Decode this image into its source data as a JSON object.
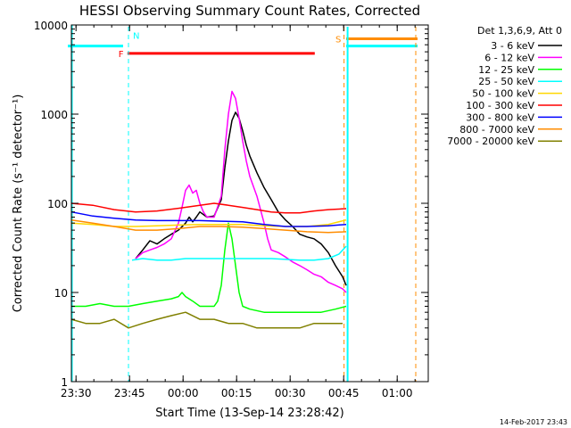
{
  "chart_data": {
    "type": "line",
    "title": "HESSI Observing Summary Count Rates, Corrected",
    "xlabel": "Start Time (13-Sep-14 23:28:42)",
    "ylabel": "Corrected Count Rate (s⁻¹ detector⁻¹)",
    "yscale": "log",
    "ylim": [
      1,
      10000
    ],
    "xlim_minutes": [
      0,
      100
    ],
    "grid": false,
    "legend_position": "right",
    "legend_title": "Det 1,3,6,9, Att 0",
    "x_ticks": [
      {
        "minute": 1.3,
        "label": "23:30"
      },
      {
        "minute": 16.3,
        "label": "23:45"
      },
      {
        "minute": 31.3,
        "label": "00:00"
      },
      {
        "minute": 46.3,
        "label": "00:15"
      },
      {
        "minute": 61.3,
        "label": "00:30"
      },
      {
        "minute": 76.3,
        "label": "00:45"
      },
      {
        "minute": 91.3,
        "label": "01:00"
      }
    ],
    "y_ticks": [
      {
        "value": 1,
        "label": "1"
      },
      {
        "value": 10,
        "label": "10"
      },
      {
        "value": 100,
        "label": "100"
      },
      {
        "value": 1000,
        "label": "1000"
      },
      {
        "value": 10000,
        "label": "10000"
      }
    ],
    "series": [
      {
        "name": "3 - 6 keV",
        "color": "#000000",
        "points": [
          [
            18,
            24
          ],
          [
            20,
            30
          ],
          [
            22,
            38
          ],
          [
            24,
            35
          ],
          [
            26,
            40
          ],
          [
            28,
            45
          ],
          [
            30,
            50
          ],
          [
            32,
            60
          ],
          [
            33,
            70
          ],
          [
            34,
            62
          ],
          [
            35,
            70
          ],
          [
            36,
            80
          ],
          [
            38,
            70
          ],
          [
            40,
            72
          ],
          [
            42,
            110
          ],
          [
            43,
            250
          ],
          [
            44,
            500
          ],
          [
            45,
            850
          ],
          [
            46,
            1050
          ],
          [
            47,
            900
          ],
          [
            48,
            650
          ],
          [
            49,
            450
          ],
          [
            50,
            340
          ],
          [
            52,
            220
          ],
          [
            54,
            150
          ],
          [
            56,
            110
          ],
          [
            58,
            80
          ],
          [
            60,
            65
          ],
          [
            62,
            55
          ],
          [
            64,
            45
          ],
          [
            66,
            42
          ],
          [
            68,
            40
          ],
          [
            70,
            35
          ],
          [
            72,
            28
          ],
          [
            74,
            20
          ],
          [
            76,
            15
          ],
          [
            77,
            12
          ]
        ]
      },
      {
        "name": "6 - 12 keV",
        "color": "#ff00ff",
        "points": [
          [
            18,
            24
          ],
          [
            20,
            28
          ],
          [
            22,
            30
          ],
          [
            24,
            32
          ],
          [
            26,
            35
          ],
          [
            28,
            40
          ],
          [
            30,
            60
          ],
          [
            31,
            90
          ],
          [
            32,
            140
          ],
          [
            33,
            160
          ],
          [
            34,
            130
          ],
          [
            35,
            140
          ],
          [
            36,
            100
          ],
          [
            37,
            80
          ],
          [
            38,
            70
          ],
          [
            40,
            70
          ],
          [
            42,
            120
          ],
          [
            43,
            400
          ],
          [
            44,
            1000
          ],
          [
            45,
            1800
          ],
          [
            46,
            1500
          ],
          [
            47,
            900
          ],
          [
            48,
            500
          ],
          [
            49,
            300
          ],
          [
            50,
            200
          ],
          [
            52,
            120
          ],
          [
            54,
            60
          ],
          [
            55,
            40
          ],
          [
            56,
            30
          ],
          [
            58,
            28
          ],
          [
            60,
            25
          ],
          [
            62,
            22
          ],
          [
            64,
            20
          ],
          [
            66,
            18
          ],
          [
            68,
            16
          ],
          [
            70,
            15
          ],
          [
            72,
            13
          ],
          [
            74,
            12
          ],
          [
            76,
            11
          ],
          [
            77,
            10
          ]
        ]
      },
      {
        "name": "12 - 25 keV",
        "color": "#00ff00",
        "points": [
          [
            0,
            7
          ],
          [
            4,
            7
          ],
          [
            8,
            7.5
          ],
          [
            12,
            7
          ],
          [
            16,
            7
          ],
          [
            20,
            7.5
          ],
          [
            24,
            8
          ],
          [
            28,
            8.5
          ],
          [
            30,
            9
          ],
          [
            31,
            10
          ],
          [
            32,
            9
          ],
          [
            34,
            8
          ],
          [
            36,
            7
          ],
          [
            38,
            7
          ],
          [
            40,
            7
          ],
          [
            41,
            8
          ],
          [
            42,
            12
          ],
          [
            43,
            30
          ],
          [
            44,
            60
          ],
          [
            45,
            40
          ],
          [
            46,
            20
          ],
          [
            47,
            10
          ],
          [
            48,
            7
          ],
          [
            50,
            6.5
          ],
          [
            54,
            6
          ],
          [
            58,
            6
          ],
          [
            62,
            6
          ],
          [
            66,
            6
          ],
          [
            70,
            6
          ],
          [
            74,
            6.5
          ],
          [
            77,
            7
          ]
        ]
      },
      {
        "name": "25 - 50 keV",
        "color": "#00ffff",
        "points": [
          [
            17,
            23
          ],
          [
            20,
            24
          ],
          [
            24,
            23
          ],
          [
            28,
            23
          ],
          [
            32,
            24
          ],
          [
            36,
            24
          ],
          [
            40,
            24
          ],
          [
            44,
            24
          ],
          [
            48,
            24
          ],
          [
            52,
            24
          ],
          [
            56,
            24
          ],
          [
            60,
            23.5
          ],
          [
            64,
            23
          ],
          [
            68,
            23
          ],
          [
            72,
            24
          ],
          [
            75,
            27
          ],
          [
            77,
            33
          ]
        ]
      },
      {
        "name": "50 - 100 keV",
        "color": "#ffd700",
        "points": [
          [
            0,
            60
          ],
          [
            6,
            58
          ],
          [
            12,
            55
          ],
          [
            18,
            55
          ],
          [
            24,
            56
          ],
          [
            30,
            57
          ],
          [
            36,
            58
          ],
          [
            42,
            58
          ],
          [
            48,
            58
          ],
          [
            54,
            56
          ],
          [
            60,
            55
          ],
          [
            66,
            55
          ],
          [
            72,
            58
          ],
          [
            77,
            65
          ]
        ]
      },
      {
        "name": "100 - 300 keV",
        "color": "#ff0000",
        "points": [
          [
            0,
            100
          ],
          [
            6,
            95
          ],
          [
            12,
            85
          ],
          [
            18,
            80
          ],
          [
            24,
            82
          ],
          [
            30,
            88
          ],
          [
            36,
            95
          ],
          [
            40,
            100
          ],
          [
            44,
            95
          ],
          [
            48,
            90
          ],
          [
            52,
            85
          ],
          [
            56,
            80
          ],
          [
            60,
            78
          ],
          [
            64,
            78
          ],
          [
            68,
            82
          ],
          [
            72,
            85
          ],
          [
            77,
            87
          ]
        ]
      },
      {
        "name": "300 - 800 keV",
        "color": "#0000ff",
        "points": [
          [
            0,
            80
          ],
          [
            6,
            72
          ],
          [
            12,
            68
          ],
          [
            18,
            65
          ],
          [
            24,
            64
          ],
          [
            30,
            64
          ],
          [
            36,
            64
          ],
          [
            42,
            63
          ],
          [
            48,
            62
          ],
          [
            54,
            58
          ],
          [
            60,
            55
          ],
          [
            66,
            55
          ],
          [
            72,
            56
          ],
          [
            77,
            58
          ]
        ]
      },
      {
        "name": "800 - 7000 keV",
        "color": "#ff8c00",
        "points": [
          [
            0,
            65
          ],
          [
            6,
            60
          ],
          [
            12,
            55
          ],
          [
            18,
            50
          ],
          [
            24,
            50
          ],
          [
            30,
            52
          ],
          [
            36,
            55
          ],
          [
            42,
            55
          ],
          [
            48,
            54
          ],
          [
            54,
            52
          ],
          [
            60,
            50
          ],
          [
            66,
            48
          ],
          [
            72,
            47
          ],
          [
            77,
            48
          ]
        ]
      },
      {
        "name": "7000 - 20000 keV",
        "color": "#808000",
        "points": [
          [
            0,
            5
          ],
          [
            4,
            4.5
          ],
          [
            8,
            4.5
          ],
          [
            12,
            5
          ],
          [
            16,
            4
          ],
          [
            20,
            4.5
          ],
          [
            24,
            5
          ],
          [
            28,
            5.5
          ],
          [
            32,
            6
          ],
          [
            36,
            5
          ],
          [
            40,
            5
          ],
          [
            44,
            4.5
          ],
          [
            48,
            4.5
          ],
          [
            52,
            4
          ],
          [
            56,
            4
          ],
          [
            60,
            4
          ],
          [
            64,
            4
          ],
          [
            68,
            4.5
          ],
          [
            72,
            4.5
          ],
          [
            76,
            4.5
          ]
        ]
      }
    ],
    "annotations": {
      "night_bars": [
        {
          "x1": -1,
          "x2": 14.5,
          "y": 5800,
          "color": "#00ffff"
        },
        {
          "x1": 77,
          "x2": 97,
          "y": 5800,
          "color": "#00ffff"
        }
      ],
      "flag_bars": [
        {
          "x1": 15.7,
          "x2": 68.2,
          "y": 4800,
          "color": "#ff0000",
          "label": "F"
        },
        {
          "x1": 77,
          "x2": 97,
          "y": 7000,
          "color": "#ff8c00",
          "label": "S"
        }
      ],
      "markers": [
        {
          "x": 16,
          "label": "N",
          "color": "#00ffff"
        },
        {
          "x": 76.4,
          "label": "",
          "color": "#ff8c00"
        },
        {
          "x": 96.5,
          "label": "",
          "color": "#ff8c00"
        }
      ]
    }
  },
  "footer": {
    "date": "14-Feb-2017 23:43"
  }
}
